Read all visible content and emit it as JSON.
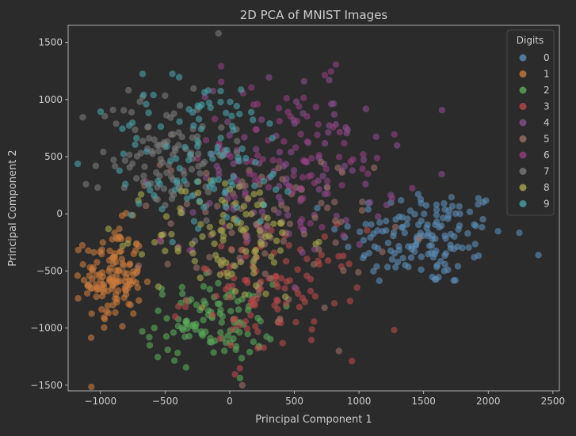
{
  "chart_data": {
    "type": "scatter",
    "title": "2D PCA of MNIST Images",
    "xlabel": "Principal Component 1",
    "ylabel": "Principal Component 2",
    "xlim": [
      -1250,
      2550
    ],
    "ylim": [
      -1550,
      1650
    ],
    "xticks": [
      -1000,
      -500,
      0,
      500,
      1000,
      1500,
      2000,
      2500
    ],
    "yticks": [
      -1500,
      -1000,
      -500,
      0,
      500,
      1000,
      1500
    ],
    "xtick_labels": [
      "−1000",
      "−500",
      "0",
      "500",
      "1000",
      "1500",
      "2000",
      "2500"
    ],
    "ytick_labels": [
      "−1500",
      "−1000",
      "−500",
      "0",
      "500",
      "1000",
      "1500"
    ],
    "grid": false,
    "legend": {
      "title": "Digits",
      "placement": "top-right"
    },
    "marker_alpha": 0.6,
    "series": [
      {
        "name": "0",
        "color": "#5b8db8",
        "cluster": {
          "cx": 1500,
          "cy": -200,
          "sx": 320,
          "sy": 220,
          "count": 150
        }
      },
      {
        "name": "1",
        "color": "#c87a3c",
        "cluster": {
          "cx": -900,
          "cy": -550,
          "sx": 110,
          "sy": 230,
          "count": 140
        }
      },
      {
        "name": "2",
        "color": "#5aaa5a",
        "cluster": {
          "cx": -150,
          "cy": -950,
          "sx": 250,
          "sy": 170,
          "count": 110
        }
      },
      {
        "name": "3",
        "color": "#b84a4a",
        "cluster": {
          "cx": 350,
          "cy": -700,
          "sx": 330,
          "sy": 280,
          "count": 110
        }
      },
      {
        "name": "4",
        "color": "#8a4f8f",
        "cluster": {
          "cx": 500,
          "cy": 400,
          "sx": 380,
          "sy": 380,
          "count": 100
        }
      },
      {
        "name": "5",
        "color": "#9b6f66",
        "cluster": {
          "cx": 300,
          "cy": -150,
          "sx": 400,
          "sy": 350,
          "count": 90
        }
      },
      {
        "name": "6",
        "color": "#933f7f",
        "cluster": {
          "cx": 400,
          "cy": 450,
          "sx": 450,
          "sy": 350,
          "count": 100
        }
      },
      {
        "name": "7",
        "color": "#7a7a7a",
        "cluster": {
          "cx": -500,
          "cy": 550,
          "sx": 250,
          "sy": 300,
          "count": 110
        }
      },
      {
        "name": "8",
        "color": "#a8a84e",
        "cluster": {
          "cx": 0,
          "cy": -200,
          "sx": 300,
          "sy": 280,
          "count": 100
        }
      },
      {
        "name": "9",
        "color": "#4aa3a8",
        "cluster": {
          "cx": -200,
          "cy": 500,
          "sx": 400,
          "sy": 350,
          "count": 110
        }
      }
    ]
  }
}
